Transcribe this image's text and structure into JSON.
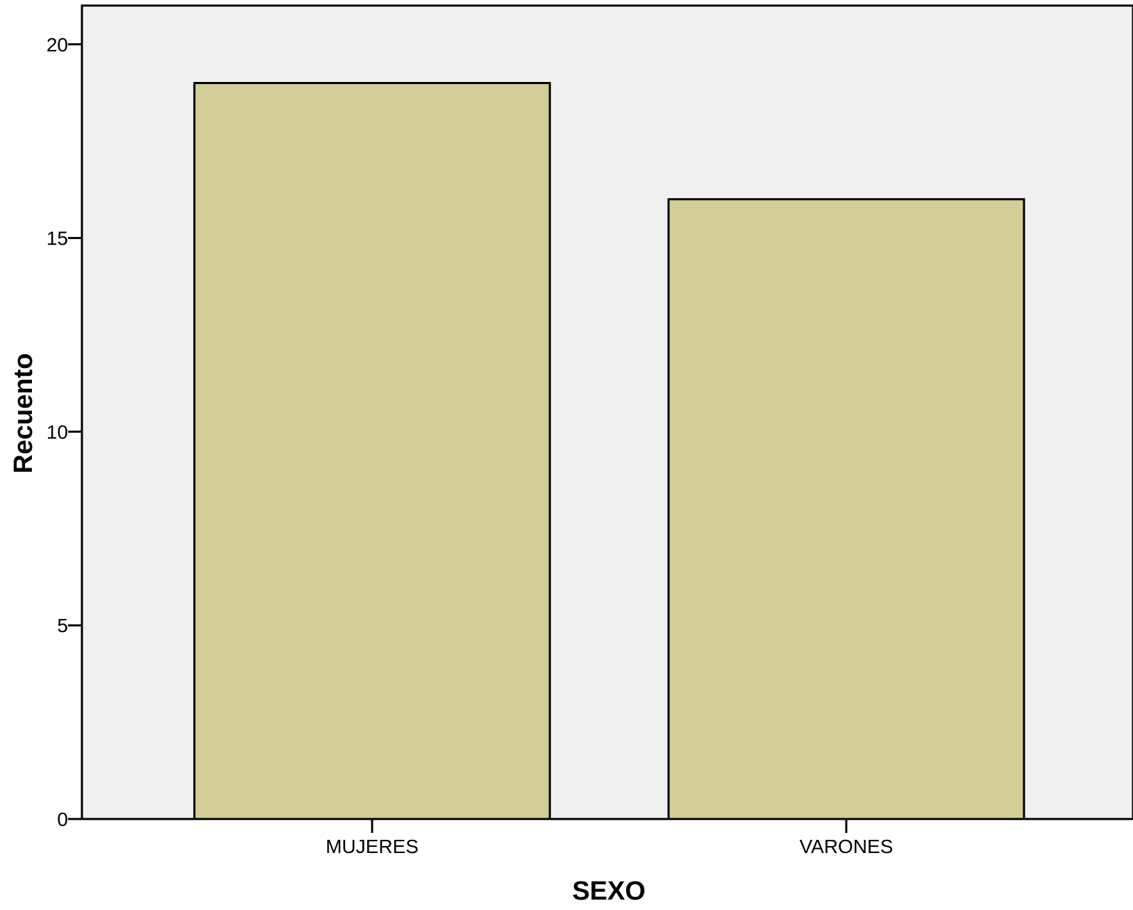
{
  "chart_data": {
    "type": "bar",
    "categories": [
      "MUJERES",
      "VARONES"
    ],
    "values": [
      19,
      16
    ],
    "title": "",
    "xlabel": "SEXO",
    "ylabel": "Recuento",
    "ylim": [
      0,
      21
    ],
    "yticks": [
      "0",
      "5",
      "10",
      "15",
      "20"
    ],
    "grid": false,
    "colors": {
      "plot_background": "#f0f0f0",
      "bar_fill": "#d3ce98",
      "bar_stroke": "#000000",
      "axis": "#000000"
    }
  }
}
